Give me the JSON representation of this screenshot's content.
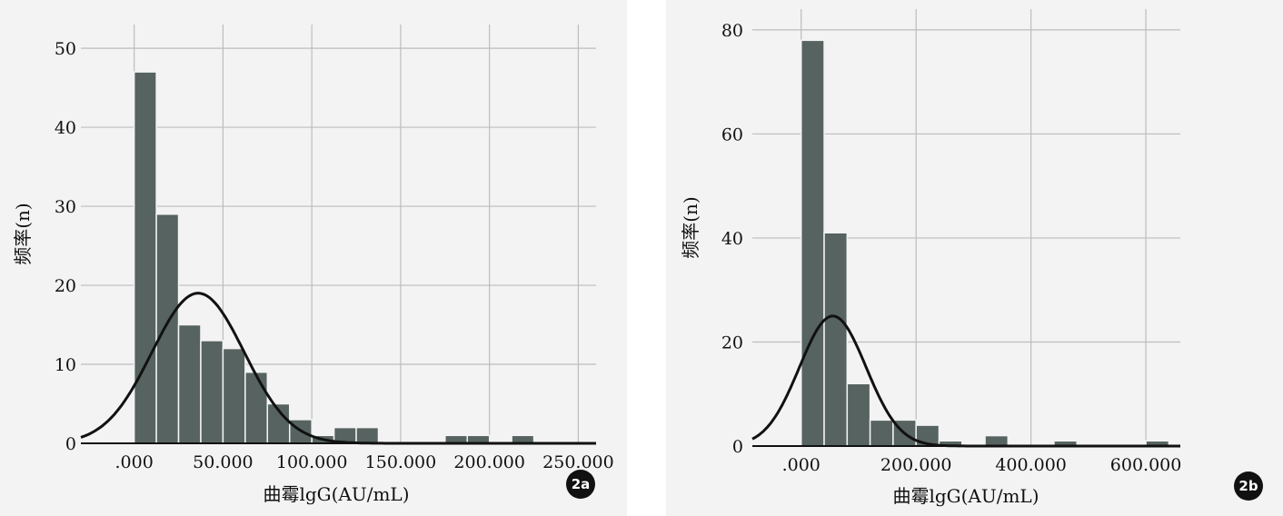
{
  "chart_data": [
    {
      "type": "bar",
      "panel_label": "2a",
      "xlabel": "曲霉lgG(AU/mL)",
      "ylabel": "频率(n)",
      "xlim": [
        -30,
        260
      ],
      "ylim": [
        0,
        53
      ],
      "x_ticks": [
        0,
        50,
        100,
        150,
        200,
        250
      ],
      "x_tick_labels": [
        ".000",
        "50.000",
        "100.000",
        "150.000",
        "200.000",
        "250.000"
      ],
      "y_ticks": [
        0,
        10,
        20,
        30,
        40,
        50
      ],
      "y_tick_labels": [
        "0",
        "10",
        "20",
        "30",
        "40",
        "50"
      ],
      "grid": true,
      "bin_start": 0,
      "bin_width": 12.5,
      "values": [
        47,
        29,
        15,
        13,
        12,
        9,
        5,
        3,
        1,
        2,
        2,
        0,
        0,
        0,
        1,
        1,
        0,
        1,
        0,
        0
      ],
      "normal_curve": {
        "mean": 36,
        "sd": 26,
        "peak": 19
      }
    },
    {
      "type": "bar",
      "panel_label": "2b",
      "xlabel": "曲霉lgG(AU/mL)",
      "ylabel": "频率(n)",
      "xlim": [
        -85,
        660
      ],
      "ylim": [
        0,
        84
      ],
      "x_ticks": [
        0,
        200,
        400,
        600
      ],
      "x_tick_labels": [
        ".000",
        "200.000",
        "400.000",
        "600.000"
      ],
      "y_ticks": [
        0,
        20,
        40,
        60,
        80
      ],
      "y_tick_labels": [
        "0",
        "20",
        "40",
        "60",
        "80"
      ],
      "grid": true,
      "bin_start": 0,
      "bin_width": 40,
      "values": [
        78,
        41,
        12,
        5,
        5,
        4,
        1,
        0,
        2,
        0,
        0,
        1,
        0,
        0,
        0,
        1
      ],
      "normal_curve": {
        "mean": 55,
        "sd": 58,
        "peak": 25
      }
    }
  ]
}
